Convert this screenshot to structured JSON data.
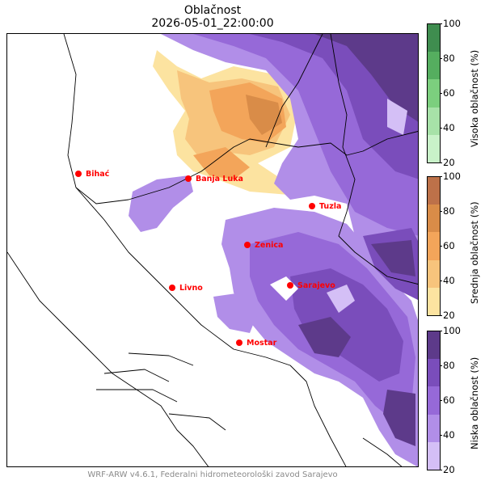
{
  "title": "Oblačnost",
  "datetime": "2026-05-01_22:00:00",
  "credit": "WRF-ARW v4.6.1, Federalni hidrometeorološki zavod Sarajevo",
  "cities": [
    {
      "name": "Bihać"
    },
    {
      "name": "Banja Luka"
    },
    {
      "name": "Tuzla"
    },
    {
      "name": "Zenica"
    },
    {
      "name": "Livno"
    },
    {
      "name": "Sarajevo"
    },
    {
      "name": "Mostar"
    }
  ],
  "colorbars": [
    {
      "label": "Visoka oblačnost (%)",
      "ticks": [
        "100",
        "80",
        "60",
        "40",
        "20"
      ],
      "colors": [
        "#3f8d4f",
        "#55ae5f",
        "#7ccf7e",
        "#a7e2a8",
        "#c9f2c9"
      ]
    },
    {
      "label": "Srednja oblačnost (%)",
      "ticks": [
        "100",
        "80",
        "60",
        "40",
        "20"
      ],
      "colors": [
        "#bd7149",
        "#d98c48",
        "#f3a55a",
        "#f7c47c",
        "#fce3a0"
      ]
    },
    {
      "label": "Niska oblačnost (%)",
      "ticks": [
        "100",
        "80",
        "60",
        "40",
        "20"
      ],
      "colors": [
        "#5d3a8a",
        "#7a4dbb",
        "#9669d8",
        "#b18ee8",
        "#d4bff6"
      ]
    }
  ],
  "colors": {
    "city_marker": "#ff0000",
    "low_cloud": "#9669d8",
    "mid_cloud": "#f3a55a",
    "high_cloud": "#55ae5f"
  }
}
